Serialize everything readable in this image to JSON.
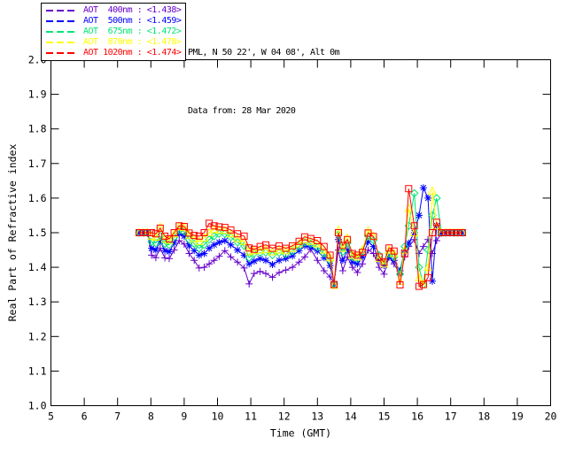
{
  "header": {
    "location_line": "PML, N 50 22', W 04 08', Alt 0m",
    "date_line": "Data from: 28 Mar 2020"
  },
  "chart_data": {
    "type": "line",
    "title": "",
    "xlabel": "Time (GMT)",
    "ylabel": "Real Part of Refractive index",
    "xlim": [
      5,
      20
    ],
    "ylim": [
      1.0,
      2.0
    ],
    "grid": false,
    "legend_position": "top-left-outside",
    "x_tick_labels": [
      "5",
      "6",
      "7",
      "8",
      "9",
      "10",
      "11",
      "12",
      "13",
      "14",
      "15",
      "16",
      "17",
      "18",
      "19",
      "20"
    ],
    "x_ticks": [
      5,
      6,
      7,
      8,
      9,
      10,
      11,
      12,
      13,
      14,
      15,
      16,
      17,
      18,
      19,
      20
    ],
    "y_tick_labels": [
      "1.0",
      "1.1",
      "1.2",
      "1.3",
      "1.4",
      "1.5",
      "1.6",
      "1.7",
      "1.8",
      "1.9",
      "2.0"
    ],
    "y_ticks": [
      1.0,
      1.1,
      1.2,
      1.3,
      1.4,
      1.5,
      1.6,
      1.7,
      1.8,
      1.9,
      2.0
    ],
    "x": [
      7.65,
      7.78,
      7.9,
      8.02,
      8.15,
      8.28,
      8.42,
      8.55,
      8.7,
      8.85,
      9.0,
      9.15,
      9.3,
      9.45,
      9.6,
      9.75,
      9.9,
      10.05,
      10.22,
      10.4,
      10.6,
      10.8,
      10.95,
      11.1,
      11.28,
      11.45,
      11.65,
      11.85,
      12.05,
      12.25,
      12.45,
      12.62,
      12.8,
      13.0,
      13.2,
      13.38,
      13.5,
      13.63,
      13.76,
      13.9,
      14.05,
      14.2,
      14.35,
      14.52,
      14.68,
      14.85,
      15.0,
      15.15,
      15.3,
      15.48,
      15.62,
      15.74,
      15.91,
      16.05,
      16.18,
      16.32,
      16.45,
      16.58,
      16.72,
      16.85,
      16.98,
      17.1,
      17.22,
      17.35
    ],
    "series": [
      {
        "name": "AOT 400nm",
        "legend_label": "AOT  400nm : <1.438>",
        "mean_value": "<1.438>",
        "color": "#6600CC",
        "marker": "plus",
        "values": [
          1.5,
          1.5,
          1.498,
          1.435,
          1.428,
          1.455,
          1.427,
          1.425,
          1.45,
          1.477,
          1.467,
          1.44,
          1.42,
          1.398,
          1.4,
          1.41,
          1.42,
          1.432,
          1.448,
          1.43,
          1.415,
          1.398,
          1.352,
          1.382,
          1.388,
          1.382,
          1.371,
          1.385,
          1.392,
          1.4,
          1.415,
          1.43,
          1.452,
          1.42,
          1.39,
          1.372,
          1.355,
          1.45,
          1.39,
          1.43,
          1.4,
          1.385,
          1.41,
          1.45,
          1.44,
          1.4,
          1.38,
          1.43,
          1.41,
          1.38,
          1.43,
          1.46,
          1.48,
          1.44,
          1.46,
          1.48,
          1.44,
          1.477,
          1.498,
          1.5,
          1.5,
          1.5,
          1.5,
          1.5
        ]
      },
      {
        "name": "AOT 500nm",
        "legend_label": "AOT  500nm : <1.459>",
        "mean_value": "<1.459>",
        "color": "#0000FF",
        "marker": "asterisk",
        "values": [
          1.5,
          1.5,
          1.5,
          1.455,
          1.45,
          1.475,
          1.448,
          1.445,
          1.47,
          1.497,
          1.49,
          1.462,
          1.448,
          1.435,
          1.44,
          1.455,
          1.465,
          1.472,
          1.477,
          1.465,
          1.45,
          1.435,
          1.41,
          1.418,
          1.425,
          1.42,
          1.408,
          1.42,
          1.425,
          1.433,
          1.448,
          1.462,
          1.458,
          1.447,
          1.428,
          1.405,
          1.35,
          1.48,
          1.42,
          1.45,
          1.415,
          1.41,
          1.43,
          1.474,
          1.46,
          1.42,
          1.405,
          1.43,
          1.42,
          1.39,
          1.45,
          1.47,
          1.5,
          1.55,
          1.63,
          1.6,
          1.36,
          1.52,
          1.5,
          1.5,
          1.5,
          1.5,
          1.5,
          1.5
        ]
      },
      {
        "name": "AOT 675nm",
        "legend_label": "AOT  675nm : <1.472>",
        "mean_value": "<1.472>",
        "color": "#00E673",
        "marker": "diamond",
        "values": [
          1.5,
          1.5,
          1.5,
          1.473,
          1.47,
          1.49,
          1.468,
          1.465,
          1.487,
          1.507,
          1.503,
          1.48,
          1.468,
          1.455,
          1.465,
          1.48,
          1.49,
          1.497,
          1.497,
          1.487,
          1.472,
          1.462,
          1.428,
          1.44,
          1.442,
          1.443,
          1.435,
          1.442,
          1.438,
          1.447,
          1.46,
          1.472,
          1.468,
          1.458,
          1.44,
          1.42,
          1.352,
          1.495,
          1.445,
          1.47,
          1.43,
          1.425,
          1.445,
          1.49,
          1.478,
          1.435,
          1.415,
          1.44,
          1.43,
          1.38,
          1.46,
          1.52,
          1.614,
          1.4,
          1.35,
          1.45,
          1.55,
          1.6,
          1.5,
          1.5,
          1.5,
          1.5,
          1.5,
          1.5
        ]
      },
      {
        "name": "AOT 870nm",
        "legend_label": "AOT  870nm : <1.478>",
        "mean_value": "<1.478>",
        "color": "#FFFF00",
        "marker": "triangle",
        "values": [
          1.5,
          1.5,
          1.5,
          1.49,
          1.487,
          1.516,
          1.482,
          1.478,
          1.497,
          1.518,
          1.515,
          1.493,
          1.483,
          1.475,
          1.485,
          1.5,
          1.51,
          1.508,
          1.507,
          1.497,
          1.483,
          1.475,
          1.445,
          1.448,
          1.45,
          1.452,
          1.445,
          1.45,
          1.448,
          1.455,
          1.468,
          1.48,
          1.475,
          1.468,
          1.45,
          1.428,
          1.348,
          1.507,
          1.455,
          1.485,
          1.435,
          1.43,
          1.45,
          1.505,
          1.49,
          1.425,
          1.41,
          1.45,
          1.44,
          1.36,
          1.45,
          1.57,
          1.5,
          1.37,
          1.35,
          1.4,
          1.62,
          1.52,
          1.5,
          1.5,
          1.5,
          1.5,
          1.5,
          1.5
        ]
      },
      {
        "name": "AOT 1020nm",
        "legend_label": "AOT 1020nm : <1.474>",
        "mean_value": "<1.474>",
        "color": "#FF0000",
        "marker": "square",
        "values": [
          1.5,
          1.5,
          1.5,
          1.5,
          1.497,
          1.513,
          1.49,
          1.482,
          1.5,
          1.52,
          1.518,
          1.499,
          1.492,
          1.49,
          1.5,
          1.527,
          1.52,
          1.517,
          1.515,
          1.508,
          1.497,
          1.49,
          1.456,
          1.452,
          1.46,
          1.465,
          1.455,
          1.462,
          1.455,
          1.462,
          1.475,
          1.488,
          1.483,
          1.477,
          1.46,
          1.435,
          1.35,
          1.5,
          1.463,
          1.48,
          1.44,
          1.435,
          1.443,
          1.499,
          1.489,
          1.43,
          1.415,
          1.456,
          1.447,
          1.349,
          1.44,
          1.627,
          1.52,
          1.345,
          1.35,
          1.37,
          1.5,
          1.53,
          1.5,
          1.5,
          1.5,
          1.5,
          1.5,
          1.5
        ]
      }
    ]
  }
}
